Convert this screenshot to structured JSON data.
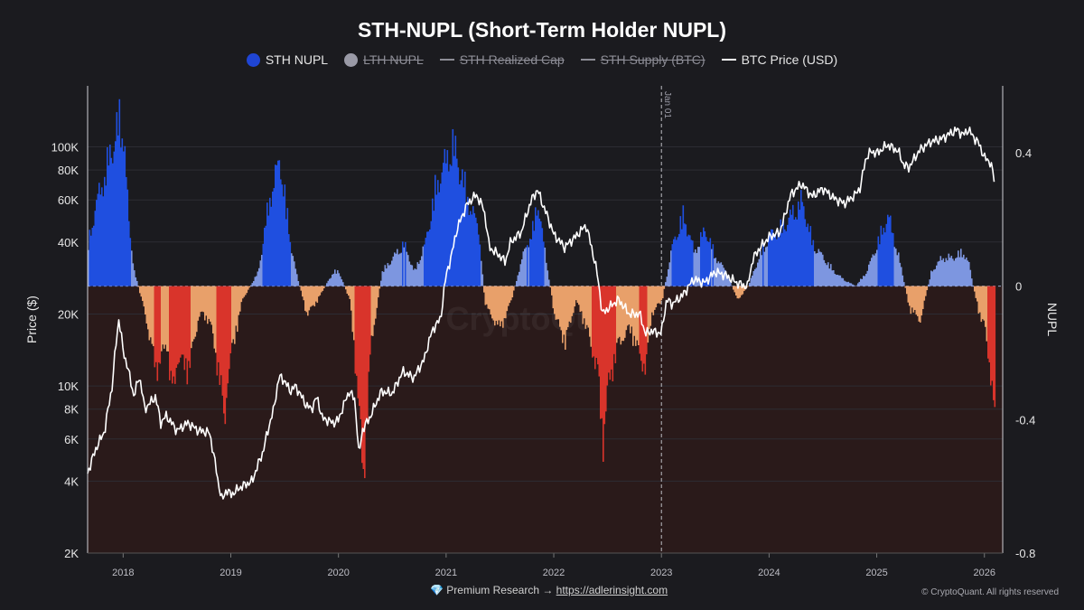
{
  "header": {
    "title": "STH-NUPL (Short-Term Holder NUPL)"
  },
  "legend": [
    {
      "label": "STH NUPL",
      "shape": "dot",
      "color": "#1f45d4",
      "active": true
    },
    {
      "label": "LTH NUPL",
      "shape": "dot",
      "color": "#9a9aa6",
      "active": false
    },
    {
      "label": "STH Realized Cap",
      "shape": "dash",
      "color": "#8d8d96",
      "active": false
    },
    {
      "label": "STH Supply (BTC)",
      "shape": "dash",
      "color": "#8d8d96",
      "active": false
    },
    {
      "label": "BTC Price (USD)",
      "shape": "dash",
      "color": "#ffffff",
      "active": true
    }
  ],
  "footer": {
    "premium_icon": "diamond-icon",
    "premium_prefix": "Premium Research →",
    "premium_link": "https://adlerinsight.com",
    "copyright": "© CryptoQuant. All rights reserved"
  },
  "colors": {
    "background": "#1b1b1f",
    "negative_zone": "#2a1a1a",
    "positive_strong": "#1f4fe0",
    "positive_weak": "#7d96e0",
    "negative_mild": "#e8a06a",
    "negative_strong": "#d9342b",
    "price_line": "#ffffff"
  },
  "chart_data": {
    "type": "area",
    "title": "STH-NUPL (Short-Term Holder NUPL)",
    "xlabel": "",
    "ylabel_left": "Price ($)",
    "ylabel_right": "NUPL",
    "x_range": [
      2017.67,
      2026.17
    ],
    "x_ticks": [
      "2018",
      "2019",
      "2020",
      "2021",
      "2022",
      "2023",
      "2024",
      "2025",
      "2026"
    ],
    "left_axis": {
      "scale": "log",
      "range": [
        2000,
        180000
      ],
      "ticks": [
        {
          "value": 2000,
          "label": "2K"
        },
        {
          "value": 4000,
          "label": "4K"
        },
        {
          "value": 6000,
          "label": "6K"
        },
        {
          "value": 8000,
          "label": "8K"
        },
        {
          "value": 10000,
          "label": "10K"
        },
        {
          "value": 20000,
          "label": "20K"
        },
        {
          "value": 40000,
          "label": "40K"
        },
        {
          "value": 60000,
          "label": "60K"
        },
        {
          "value": 80000,
          "label": "80K"
        },
        {
          "value": 100000,
          "label": "100K"
        }
      ]
    },
    "right_axis": {
      "scale": "linear",
      "range": [
        -0.8,
        0.6
      ],
      "ticks": [
        {
          "value": 0.4,
          "label": "0.4"
        },
        {
          "value": 0,
          "label": "0"
        },
        {
          "value": -0.4,
          "label": "-0.4"
        },
        {
          "value": -0.8,
          "label": "-0.8"
        }
      ]
    },
    "annotation": {
      "label": "Jan 01",
      "x": 2023.0
    },
    "watermark": "CryptoQuant",
    "grid": true,
    "series": [
      {
        "name": "STH NUPL",
        "axis": "right",
        "x": [
          2017.67,
          2017.75,
          2017.83,
          2017.9,
          2017.96,
          2018.0,
          2018.05,
          2018.1,
          2018.2,
          2018.3,
          2018.4,
          2018.45,
          2018.5,
          2018.6,
          2018.7,
          2018.8,
          2018.9,
          2018.93,
          2018.97,
          2019.1,
          2019.25,
          2019.35,
          2019.45,
          2019.5,
          2019.55,
          2019.6,
          2019.7,
          2019.8,
          2019.9,
          2019.95,
          2020.0,
          2020.1,
          2020.18,
          2020.22,
          2020.3,
          2020.4,
          2020.5,
          2020.6,
          2020.7,
          2020.8,
          2020.9,
          2021.0,
          2021.05,
          2021.1,
          2021.2,
          2021.3,
          2021.35,
          2021.4,
          2021.5,
          2021.6,
          2021.7,
          2021.8,
          2021.85,
          2021.9,
          2022.0,
          2022.1,
          2022.2,
          2022.3,
          2022.4,
          2022.45,
          2022.5,
          2022.6,
          2022.7,
          2022.85,
          2022.9,
          2023.0,
          2023.1,
          2023.2,
          2023.3,
          2023.4,
          2023.5,
          2023.6,
          2023.7,
          2023.8,
          2023.9,
          2024.0,
          2024.1,
          2024.2,
          2024.3,
          2024.4,
          2024.5,
          2024.6,
          2024.7,
          2024.8,
          2024.9,
          2025.0,
          2025.1,
          2025.2,
          2025.3,
          2025.4,
          2025.5,
          2025.6,
          2025.7,
          2025.8,
          2025.85,
          2025.9,
          2025.95,
          2026.0,
          2026.05,
          2026.1
        ],
        "values": [
          0.15,
          0.3,
          0.4,
          0.5,
          0.58,
          0.55,
          0.2,
          0.05,
          -0.1,
          -0.3,
          -0.2,
          -0.4,
          -0.25,
          -0.3,
          -0.1,
          -0.12,
          -0.35,
          -0.5,
          -0.3,
          -0.05,
          0.05,
          0.3,
          0.45,
          0.3,
          0.15,
          0.05,
          -0.1,
          -0.05,
          0.02,
          0.05,
          0.05,
          -0.05,
          -0.4,
          -0.7,
          -0.2,
          0.05,
          0.1,
          0.15,
          0.05,
          0.15,
          0.35,
          0.45,
          0.5,
          0.45,
          0.3,
          0.2,
          -0.05,
          -0.1,
          -0.15,
          -0.05,
          0.1,
          0.2,
          0.3,
          0.15,
          -0.1,
          -0.2,
          -0.05,
          -0.15,
          -0.3,
          -0.55,
          -0.35,
          -0.2,
          -0.15,
          -0.3,
          -0.1,
          -0.05,
          0.15,
          0.25,
          0.12,
          0.2,
          0.1,
          0.05,
          -0.05,
          0.0,
          0.1,
          0.18,
          0.2,
          0.25,
          0.3,
          0.15,
          0.1,
          0.05,
          0.02,
          0.0,
          0.05,
          0.15,
          0.25,
          0.1,
          -0.08,
          -0.12,
          0.05,
          0.1,
          0.1,
          0.12,
          0.08,
          -0.02,
          -0.1,
          -0.15,
          -0.3,
          -0.55
        ]
      },
      {
        "name": "BTC Price (USD)",
        "axis": "left",
        "x": [
          2017.67,
          2017.75,
          2017.83,
          2017.9,
          2017.96,
          2018.0,
          2018.1,
          2018.15,
          2018.2,
          2018.3,
          2018.35,
          2018.4,
          2018.5,
          2018.6,
          2018.7,
          2018.8,
          2018.88,
          2018.92,
          2018.96,
          2019.0,
          2019.1,
          2019.2,
          2019.3,
          2019.4,
          2019.45,
          2019.5,
          2019.55,
          2019.6,
          2019.7,
          2019.75,
          2019.8,
          2019.85,
          2019.9,
          2019.95,
          2020.0,
          2020.1,
          2020.15,
          2020.19,
          2020.22,
          2020.3,
          2020.4,
          2020.5,
          2020.6,
          2020.7,
          2020.8,
          2020.85,
          2020.9,
          2020.95,
          2021.0,
          2021.05,
          2021.1,
          2021.2,
          2021.28,
          2021.35,
          2021.4,
          2021.5,
          2021.55,
          2021.6,
          2021.7,
          2021.8,
          2021.85,
          2021.9,
          2022.0,
          2022.1,
          2022.2,
          2022.3,
          2022.35,
          2022.4,
          2022.45,
          2022.5,
          2022.6,
          2022.7,
          2022.8,
          2022.85,
          2022.9,
          2023.0,
          2023.05,
          2023.1,
          2023.2,
          2023.3,
          2023.4,
          2023.5,
          2023.6,
          2023.7,
          2023.8,
          2023.85,
          2023.9,
          2024.0,
          2024.1,
          2024.15,
          2024.2,
          2024.3,
          2024.4,
          2024.5,
          2024.6,
          2024.7,
          2024.8,
          2024.85,
          2024.9,
          2024.95,
          2025.0,
          2025.1,
          2025.2,
          2025.25,
          2025.3,
          2025.4,
          2025.5,
          2025.6,
          2025.7,
          2025.75,
          2025.8,
          2025.85,
          2025.9,
          2025.95,
          2026.0,
          2026.05,
          2026.08,
          2026.1
        ],
        "values": [
          4300,
          5500,
          6500,
          10000,
          19000,
          14000,
          9000,
          11000,
          8000,
          9000,
          7000,
          7500,
          6500,
          7000,
          6500,
          6400,
          4000,
          3300,
          3700,
          3500,
          3800,
          4000,
          5300,
          8000,
          11000,
          10500,
          9500,
          10000,
          8300,
          8000,
          9000,
          7300,
          7200,
          7000,
          7200,
          9500,
          8800,
          5000,
          6500,
          7500,
          9500,
          9300,
          11500,
          10800,
          13000,
          16000,
          18000,
          19000,
          29000,
          35000,
          45000,
          58000,
          63000,
          55000,
          38000,
          35000,
          33000,
          40000,
          44000,
          61000,
          66000,
          57000,
          43000,
          38000,
          42000,
          47000,
          38000,
          30000,
          20000,
          21000,
          23000,
          20000,
          20000,
          16500,
          17000,
          16600,
          23000,
          22000,
          24000,
          28000,
          27000,
          30000,
          29000,
          27000,
          26000,
          34000,
          37000,
          42000,
          44000,
          52000,
          63000,
          70000,
          62000,
          67000,
          61000,
          58000,
          63000,
          68000,
          90000,
          96000,
          94000,
          102000,
          96000,
          84000,
          82000,
          97000,
          105000,
          108000,
          115000,
          118000,
          112000,
          118000,
          110000,
          103000,
          90000,
          87000,
          78000,
          68000
        ]
      }
    ]
  }
}
